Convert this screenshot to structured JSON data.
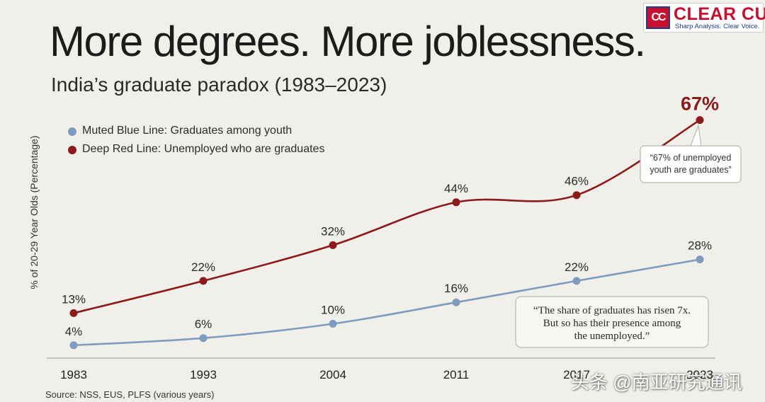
{
  "header": {
    "title": "More degrees. More joblessness.",
    "subtitle": "India’s graduate paradox (1983–2023)"
  },
  "logo": {
    "mark": "CC",
    "name": "CLEAR CUT",
    "tagline": "Sharp Analysis. Clear Voice."
  },
  "colors": {
    "background": "#f1efea",
    "blue": "#7f9cbf",
    "red": "#8b1a1a"
  },
  "chart_data": {
    "type": "line",
    "title": "More degrees. More joblessness.",
    "subtitle": "India’s graduate paradox (1983–2023)",
    "ylabel": "% of 20-29 Year Olds (Percentage)",
    "categories": [
      "1983",
      "1993",
      "2004",
      "2011",
      "2017",
      "2023"
    ],
    "ylim": [
      0,
      70
    ],
    "grid": false,
    "legend_position": "top-left",
    "series": [
      {
        "name": "Muted Blue Line: Graduates among youth",
        "color": "#7f9cbf",
        "values": [
          4,
          6,
          10,
          16,
          22,
          28
        ],
        "labels": [
          "4%",
          "6%",
          "10%",
          "16%",
          "22%",
          "28%"
        ]
      },
      {
        "name": "Deep Red Line: Unemployed who are graduates",
        "color": "#8b1a1a",
        "values": [
          13,
          22,
          32,
          44,
          46,
          67
        ],
        "labels": [
          "13%",
          "22%",
          "32%",
          "44%",
          "46%",
          "67%"
        ]
      }
    ],
    "annotations": [
      {
        "id": "red-callout",
        "lines": [
          "“67% of unemployed",
          "youth are graduates”"
        ]
      },
      {
        "id": "blue-callout",
        "lines": [
          "“The share of graduates has risen 7x.",
          "But so has their presence among",
          "the unemployed.”"
        ]
      }
    ],
    "source": "Source: NSS, EUS, PLFS (various years)"
  },
  "watermark": "头条 @南亚研究通讯"
}
